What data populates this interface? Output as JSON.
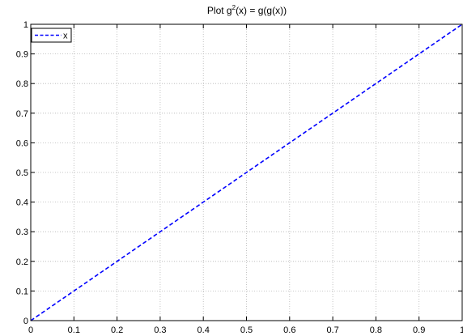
{
  "chart_data": {
    "type": "line",
    "title": "Plot g²(x) = g(g(x))",
    "title_parts": {
      "before": "Plot g",
      "superscript": "2",
      "after": "(x) = g(g(x))"
    },
    "xlabel": "",
    "ylabel": "",
    "xlim": [
      0,
      1
    ],
    "ylim": [
      0,
      1
    ],
    "xticks": [
      0,
      0.1,
      0.2,
      0.3,
      0.4,
      0.5,
      0.6,
      0.7,
      0.8,
      0.9,
      1
    ],
    "xtick_labels": [
      "0",
      "0.1",
      "0.2",
      "0.3",
      "0.4",
      "0.5",
      "0.6",
      "0.7",
      "0.8",
      "0.9",
      "1"
    ],
    "yticks": [
      0,
      0.1,
      0.2,
      0.3,
      0.4,
      0.5,
      0.6,
      0.7,
      0.8,
      0.9,
      1
    ],
    "ytick_labels": [
      "0",
      "0.1",
      "0.2",
      "0.3",
      "0.4",
      "0.5",
      "0.6",
      "0.7",
      "0.8",
      "0.9",
      "1"
    ],
    "grid": true,
    "legend_position": "top-left",
    "series": [
      {
        "name": "x",
        "style": "dashed",
        "color": "#0000ff",
        "x": [
          0,
          1
        ],
        "y": [
          0,
          1
        ]
      }
    ]
  }
}
